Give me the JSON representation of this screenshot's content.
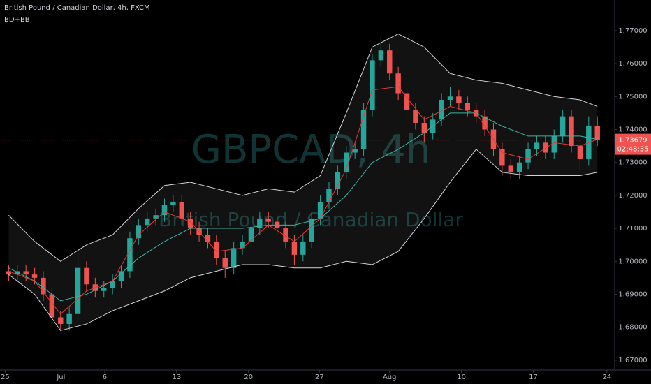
{
  "chart_data": {
    "type": "candlestick",
    "title": "British Pound / Canadian Dollar, 4h, FXCM",
    "subtitle": "BD+BB",
    "watermark": "GBPCAD, 4h",
    "watermark_subtitle": "British Pound / Canadian Dollar",
    "up_color": "#26a69a",
    "down_color": "#ef5350",
    "x": [
      0,
      1,
      2,
      3,
      4,
      5,
      6,
      7,
      8,
      9,
      10,
      11,
      12,
      13,
      14,
      15,
      16,
      17,
      18,
      19,
      20,
      21,
      22,
      23,
      24,
      25,
      26,
      27,
      28,
      29,
      30,
      31,
      32,
      33,
      34,
      35,
      36,
      37,
      38,
      39,
      40,
      41,
      42,
      43,
      44,
      45,
      46,
      47,
      48,
      49,
      50,
      51,
      52,
      53,
      54,
      55,
      56,
      57,
      58,
      59,
      60,
      61,
      62,
      63,
      64,
      65,
      66,
      67,
      68
    ],
    "open": [
      1.697,
      1.696,
      1.697,
      1.696,
      1.695,
      1.69,
      1.683,
      1.681,
      1.684,
      1.698,
      1.693,
      1.691,
      1.692,
      1.694,
      1.697,
      1.707,
      1.711,
      1.713,
      1.714,
      1.717,
      1.718,
      1.713,
      1.71,
      1.708,
      1.706,
      1.701,
      1.698,
      1.704,
      1.706,
      1.71,
      1.713,
      1.712,
      1.71,
      1.706,
      1.702,
      1.706,
      1.713,
      1.718,
      1.722,
      1.727,
      1.733,
      1.734,
      1.746,
      1.761,
      1.764,
      1.757,
      1.751,
      1.746,
      1.742,
      1.739,
      1.743,
      1.749,
      1.75,
      1.748,
      1.746,
      1.744,
      1.74,
      1.734,
      1.729,
      1.727,
      1.73,
      1.734,
      1.736,
      1.733,
      1.738,
      1.744,
      1.735,
      1.731,
      1.741
    ],
    "high": [
      1.699,
      1.699,
      1.699,
      1.698,
      1.697,
      1.692,
      1.685,
      1.686,
      1.703,
      1.7,
      1.695,
      1.694,
      1.696,
      1.699,
      1.709,
      1.713,
      1.715,
      1.716,
      1.719,
      1.72,
      1.72,
      1.715,
      1.712,
      1.71,
      1.708,
      1.703,
      1.706,
      1.708,
      1.712,
      1.715,
      1.715,
      1.714,
      1.712,
      1.708,
      1.708,
      1.715,
      1.72,
      1.724,
      1.729,
      1.735,
      1.736,
      1.748,
      1.763,
      1.768,
      1.766,
      1.759,
      1.753,
      1.748,
      1.744,
      1.745,
      1.751,
      1.753,
      1.752,
      1.75,
      1.748,
      1.746,
      1.742,
      1.736,
      1.731,
      1.732,
      1.736,
      1.738,
      1.738,
      1.74,
      1.746,
      1.746,
      1.737,
      1.744,
      1.744
    ],
    "low": [
      1.694,
      1.694,
      1.694,
      1.693,
      1.688,
      1.681,
      1.679,
      1.679,
      1.682,
      1.691,
      1.689,
      1.689,
      1.69,
      1.692,
      1.695,
      1.705,
      1.709,
      1.711,
      1.712,
      1.715,
      1.711,
      1.708,
      1.706,
      1.704,
      1.699,
      1.695,
      1.696,
      1.702,
      1.704,
      1.708,
      1.71,
      1.708,
      1.704,
      1.699,
      1.7,
      1.704,
      1.711,
      1.716,
      1.72,
      1.725,
      1.731,
      1.732,
      1.744,
      1.759,
      1.755,
      1.749,
      1.744,
      1.74,
      1.736,
      1.737,
      1.741,
      1.747,
      1.746,
      1.744,
      1.742,
      1.738,
      1.732,
      1.726,
      1.725,
      1.725,
      1.728,
      1.732,
      1.731,
      1.731,
      1.736,
      1.733,
      1.728,
      1.729,
      1.735
    ],
    "close": [
      1.696,
      1.697,
      1.696,
      1.695,
      1.69,
      1.683,
      1.681,
      1.684,
      1.698,
      1.693,
      1.691,
      1.692,
      1.694,
      1.697,
      1.707,
      1.711,
      1.713,
      1.714,
      1.717,
      1.718,
      1.713,
      1.71,
      1.708,
      1.706,
      1.701,
      1.698,
      1.704,
      1.706,
      1.71,
      1.713,
      1.712,
      1.71,
      1.706,
      1.702,
      1.706,
      1.713,
      1.718,
      1.722,
      1.727,
      1.733,
      1.734,
      1.746,
      1.761,
      1.764,
      1.757,
      1.751,
      1.746,
      1.742,
      1.739,
      1.743,
      1.749,
      1.75,
      1.748,
      1.746,
      1.744,
      1.74,
      1.734,
      1.729,
      1.727,
      1.73,
      1.734,
      1.736,
      1.733,
      1.738,
      1.744,
      1.735,
      1.731,
      1.741,
      1.73679
    ],
    "series": [
      {
        "color": "#d1d4dc",
        "x": [
          0,
          3,
          6,
          9,
          12,
          15,
          18,
          21,
          24,
          27,
          30,
          33,
          36,
          39,
          42,
          45,
          48,
          51,
          54,
          57,
          60,
          63,
          66,
          68
        ],
        "values": [
          1.714,
          1.706,
          1.7,
          1.705,
          1.708,
          1.716,
          1.723,
          1.724,
          1.722,
          1.72,
          1.722,
          1.721,
          1.726,
          1.745,
          1.765,
          1.769,
          1.765,
          1.757,
          1.755,
          1.754,
          1.752,
          1.75,
          1.749,
          1.747
        ]
      },
      {
        "color": "#d1d4dc",
        "x": [
          0,
          3,
          6,
          9,
          12,
          15,
          18,
          21,
          24,
          27,
          30,
          33,
          36,
          39,
          42,
          45,
          48,
          51,
          54,
          57,
          60,
          63,
          66,
          68
        ],
        "values": [
          1.696,
          1.69,
          1.679,
          1.681,
          1.685,
          1.688,
          1.691,
          1.695,
          1.697,
          1.699,
          1.699,
          1.698,
          1.698,
          1.7,
          1.699,
          1.703,
          1.713,
          1.724,
          1.734,
          1.727,
          1.726,
          1.726,
          1.726,
          1.727
        ]
      },
      {
        "color": "#3bb3a3",
        "x": [
          0,
          3,
          6,
          9,
          12,
          15,
          18,
          21,
          24,
          27,
          30,
          33,
          36,
          39,
          42,
          45,
          48,
          51,
          54,
          57,
          60,
          63,
          66,
          68
        ],
        "values": [
          1.698,
          1.694,
          1.688,
          1.69,
          1.694,
          1.701,
          1.706,
          1.71,
          1.71,
          1.71,
          1.711,
          1.711,
          1.713,
          1.72,
          1.73,
          1.734,
          1.739,
          1.745,
          1.745,
          1.741,
          1.738,
          1.738,
          1.738,
          1.737
        ]
      },
      {
        "color": "#e53935",
        "x": [
          0,
          3,
          6,
          9,
          12,
          15,
          18,
          21,
          24,
          27,
          30,
          33,
          36,
          39,
          42,
          45,
          48,
          51,
          54,
          57,
          60,
          63,
          66,
          68
        ],
        "values": [
          1.697,
          1.694,
          1.684,
          1.691,
          1.694,
          1.708,
          1.715,
          1.712,
          1.703,
          1.704,
          1.711,
          1.706,
          1.713,
          1.728,
          1.752,
          1.753,
          1.743,
          1.747,
          1.745,
          1.733,
          1.731,
          1.736,
          1.735,
          1.737
        ]
      }
    ],
    "last_price": 1.73679,
    "countdown": "02:48:35",
    "xlim": [
      -1,
      70
    ],
    "ylim": [
      1.667,
      1.7793
    ],
    "xticks": [
      {
        "value": -0.4,
        "label": "25"
      },
      {
        "value": 6.05,
        "label": "Jul"
      },
      {
        "value": 11.1,
        "label": "6"
      },
      {
        "value": 19.4,
        "label": "13"
      },
      {
        "value": 27.7,
        "label": "20"
      },
      {
        "value": 35.9,
        "label": "27"
      },
      {
        "value": 44.0,
        "label": "Aug"
      },
      {
        "value": 52.3,
        "label": "10"
      },
      {
        "value": 60.6,
        "label": "17"
      },
      {
        "value": 69.1,
        "label": "24"
      }
    ],
    "yticks": [
      {
        "value": 1.67,
        "label": "1.67000"
      },
      {
        "value": 1.68,
        "label": "1.68000"
      },
      {
        "value": 1.69,
        "label": "1.69000"
      },
      {
        "value": 1.7,
        "label": "1.70000"
      },
      {
        "value": 1.71,
        "label": "1.71000"
      },
      {
        "value": 1.72,
        "label": "1.72000"
      },
      {
        "value": 1.73,
        "label": "1.73000"
      },
      {
        "value": 1.74,
        "label": "1.74000"
      },
      {
        "value": 1.75,
        "label": "1.75000"
      },
      {
        "value": 1.76,
        "label": "1.76000"
      },
      {
        "value": 1.77,
        "label": "1.77000"
      }
    ]
  }
}
